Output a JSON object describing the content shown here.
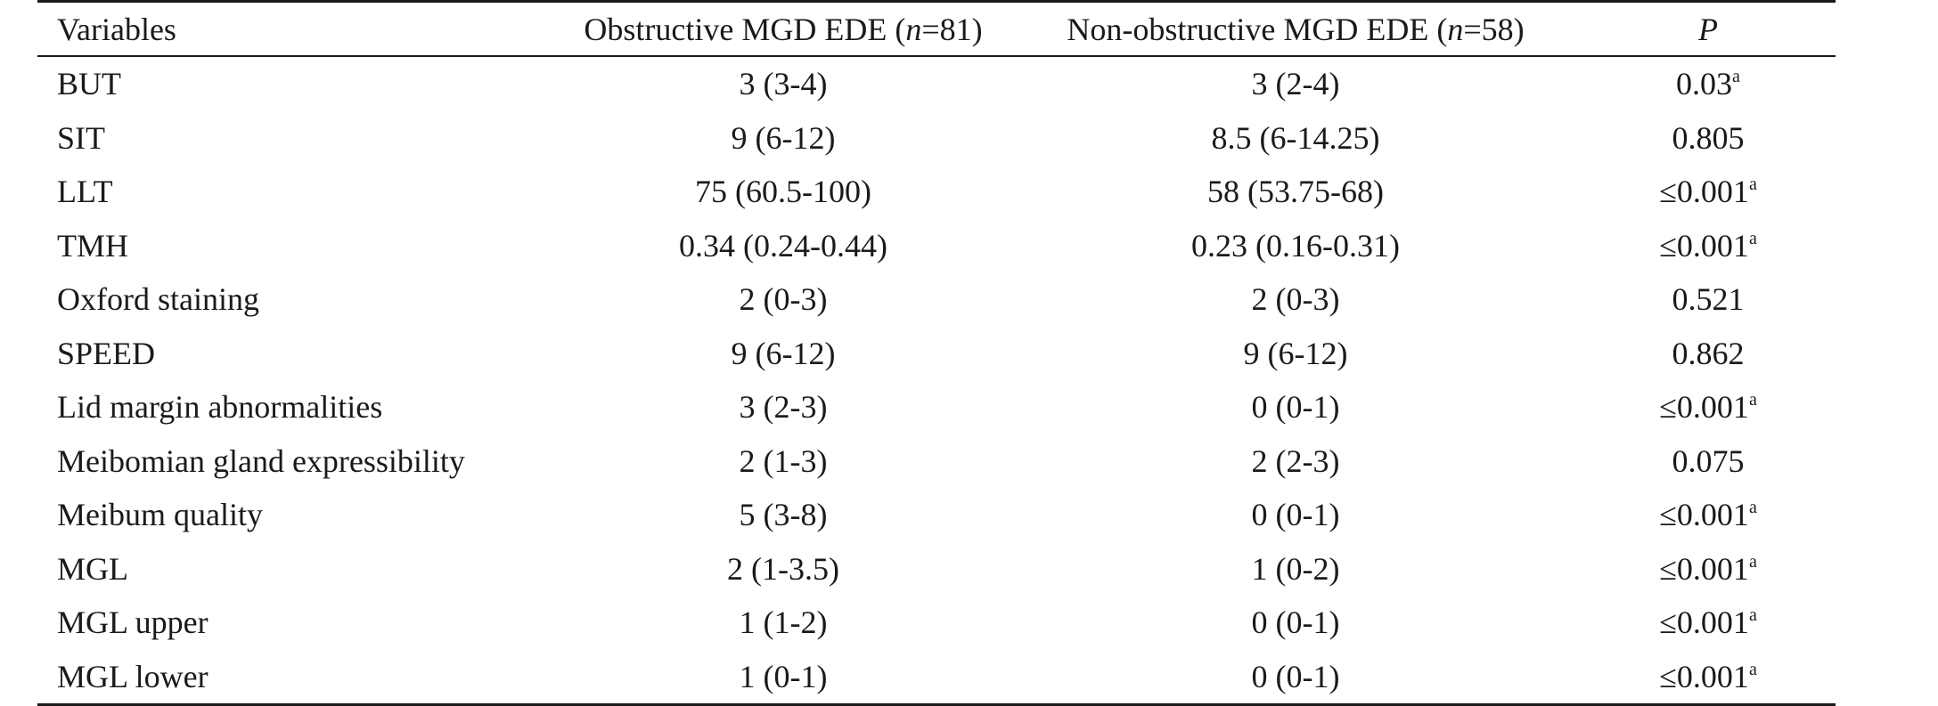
{
  "table": {
    "headers": {
      "variables": "Variables",
      "obstructive_prefix": "Obstructive MGD EDE (",
      "obstructive_n_symbol": "n",
      "obstructive_suffix": "=81)",
      "nonobstructive_prefix": "Non-obstructive MGD EDE (",
      "nonobstructive_n_symbol": "n",
      "nonobstructive_suffix": "=58)",
      "p": "P"
    },
    "rows": [
      {
        "variable": "BUT",
        "obstructive": "3 (3-4)",
        "nonobstructive": "3 (2-4)",
        "p": "0.03",
        "sup": "a"
      },
      {
        "variable": "SIT",
        "obstructive": "9 (6-12)",
        "nonobstructive": "8.5 (6-14.25)",
        "p": "0.805",
        "sup": ""
      },
      {
        "variable": "LLT",
        "obstructive": "75 (60.5-100)",
        "nonobstructive": "58 (53.75-68)",
        "p": "≤0.001",
        "sup": "a"
      },
      {
        "variable": "TMH",
        "obstructive": "0.34 (0.24-0.44)",
        "nonobstructive": "0.23 (0.16-0.31)",
        "p": "≤0.001",
        "sup": "a"
      },
      {
        "variable": "Oxford staining",
        "obstructive": "2 (0-3)",
        "nonobstructive": "2 (0-3)",
        "p": "0.521",
        "sup": ""
      },
      {
        "variable": "SPEED",
        "obstructive": "9 (6-12)",
        "nonobstructive": "9 (6-12)",
        "p": "0.862",
        "sup": ""
      },
      {
        "variable": "Lid margin abnormalities",
        "obstructive": "3 (2-3)",
        "nonobstructive": "0 (0-1)",
        "p": "≤0.001",
        "sup": "a"
      },
      {
        "variable": "Meibomian gland expressibility",
        "obstructive": "2 (1-3)",
        "nonobstructive": "2 (2-3)",
        "p": "0.075",
        "sup": ""
      },
      {
        "variable": "Meibum quality",
        "obstructive": "5 (3-8)",
        "nonobstructive": "0 (0-1)",
        "p": "≤0.001",
        "sup": "a"
      },
      {
        "variable": "MGL",
        "obstructive": "2 (1-3.5)",
        "nonobstructive": "1 (0-2)",
        "p": "≤0.001",
        "sup": "a"
      },
      {
        "variable": "MGL upper",
        "obstructive": "1 (1-2)",
        "nonobstructive": "0 (0-1)",
        "p": "≤0.001",
        "sup": "a"
      },
      {
        "variable": "MGL lower",
        "obstructive": "1 (0-1)",
        "nonobstructive": "0 (0-1)",
        "p": "≤0.001",
        "sup": "a"
      }
    ]
  }
}
